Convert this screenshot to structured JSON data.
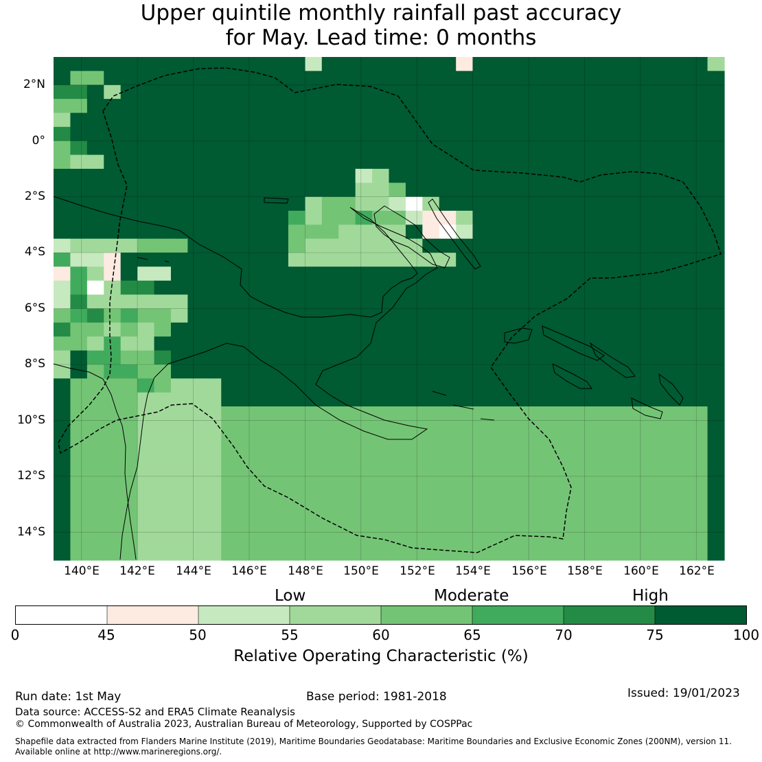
{
  "title": {
    "line1": "Upper quintile monthly rainfall past accuracy",
    "line2": "for May. Lead time: 0 months"
  },
  "axes": {
    "lon_range": [
      139,
      163
    ],
    "lat_range": [
      -15,
      3
    ],
    "lat_ticks": [
      {
        "lat": 2,
        "label": "2°N"
      },
      {
        "lat": 0,
        "label": "0°"
      },
      {
        "lat": -2,
        "label": "2°S"
      },
      {
        "lat": -4,
        "label": "4°S"
      },
      {
        "lat": -6,
        "label": "6°S"
      },
      {
        "lat": -8,
        "label": "8°S"
      },
      {
        "lat": -10,
        "label": "10°S"
      },
      {
        "lat": -12,
        "label": "12°S"
      },
      {
        "lat": -14,
        "label": "14°S"
      }
    ],
    "lon_ticks": [
      {
        "lon": 140,
        "label": "140°E"
      },
      {
        "lon": 142,
        "label": "142°E"
      },
      {
        "lon": 144,
        "label": "144°E"
      },
      {
        "lon": 146,
        "label": "146°E"
      },
      {
        "lon": 148,
        "label": "148°E"
      },
      {
        "lon": 150,
        "label": "150°E"
      },
      {
        "lon": 152,
        "label": "152°E"
      },
      {
        "lon": 154,
        "label": "154°E"
      },
      {
        "lon": 156,
        "label": "156°E"
      },
      {
        "lon": 158,
        "label": "158°E"
      },
      {
        "lon": 160,
        "label": "160°E"
      },
      {
        "lon": 162,
        "label": "162°E"
      }
    ]
  },
  "grid": {
    "note": "cell class codes: 0 = 0-45%, 1 = 45-50%, 2 = 50-55%, 3 = 55-60%, 4 = 60-65%, 5 = 65-70%, 6 = 70-75%, 7 = 75-100%; rows from north to south",
    "rows": [
      "7777777777777772777777771777777777777773",
      "7447777777777777777777777777777777777777",
      "6673777777777777777777777777777777777777",
      "4477777777777777777777777777777777777777",
      "3777777777777777777777777777777777777777",
      "6777777777777777777777777777777777777777",
      "4677777777777777777777777777777777777777",
      "4337777777777777777777777777777777777777",
      "7777777777777777772377777777777777777777",
      "7777777777777777773347777777777777777777",
      "7777777777777773443320377777777777777777",
      "7777777777777753445442113777777777777777",
      "7777777777777744433337102777777777777777",
      "2333344477777743333333777777777777777777",
      "5221777777777733333333337777777777777777",
      "1531722777777777777777777777777777777777",
      "2503667777777777777777777777777777777777",
      "2633333377777777777777777777777777777777",
      "4564544377777777777777777777777777777777",
      "6443434777777777777777777777777777777777",
      "4435337777777777777777777777777777777777",
      "3755446777777777777777777777777777777777",
      "3745544777777777777777777777777777777777",
      "7444454333777777777777777777777777777777",
      "7444433333777777777777777777777777777777",
      "7444433333444444444444444444444444444447",
      "7444433333444444444444444444444444444447",
      "7444433333444444444444444444444444444447",
      "7444433333444444444444444444444444444447",
      "7444433333444444444444444444444444444447",
      "7444433333444444444444444444444444444447",
      "7444433333444444444444444444444444444447",
      "7444433333444444444444444444444444444447",
      "7444433333444444444444444444444444444447",
      "7444433333444444444444444444444444444447",
      "7444433333444444444444444444444444444447"
    ]
  },
  "legend": {
    "categories": [
      {
        "label": "Low",
        "x_percent": 55
      },
      {
        "label": "Moderate",
        "x_percent": 65
      },
      {
        "label": "High",
        "x_percent": 75
      }
    ],
    "bins": [
      {
        "from": 0,
        "to": 45,
        "color": "#ffffff"
      },
      {
        "from": 45,
        "to": 50,
        "color": "#fdeae1"
      },
      {
        "from": 50,
        "to": 55,
        "color": "#c7e9c0"
      },
      {
        "from": 55,
        "to": 60,
        "color": "#a1d99b"
      },
      {
        "from": 60,
        "to": 65,
        "color": "#74c476"
      },
      {
        "from": 65,
        "to": 70,
        "color": "#41ab5d"
      },
      {
        "from": 70,
        "to": 75,
        "color": "#238b45"
      },
      {
        "from": 75,
        "to": 100,
        "color": "#005a32"
      }
    ],
    "tick_labels": [
      "0",
      "45",
      "50",
      "55",
      "60",
      "65",
      "70",
      "75",
      "100"
    ],
    "title": "Relative Operating Characteristic (%)"
  },
  "footer": {
    "run_date": "Run date: 1st May",
    "base_period": "Base period: 1981-2018",
    "issued": "Issued: 19/01/2023",
    "data_source": "Data source: ACCESS-S2 and ERA5 Climate Reanalysis",
    "copyright": "© Commonwealth of Australia 2023, Australian Bureau of Meteorology, Supported by COSPPac",
    "shapefile_line1": "Shapefile data extracted from Flanders Marine Institute (2019), Maritime Boundaries Geodatabase: Maritime Boundaries and Exclusive Economic Zones (200NM), version 11.",
    "shapefile_line2": "Available online at http://www.marineregions.org/."
  }
}
